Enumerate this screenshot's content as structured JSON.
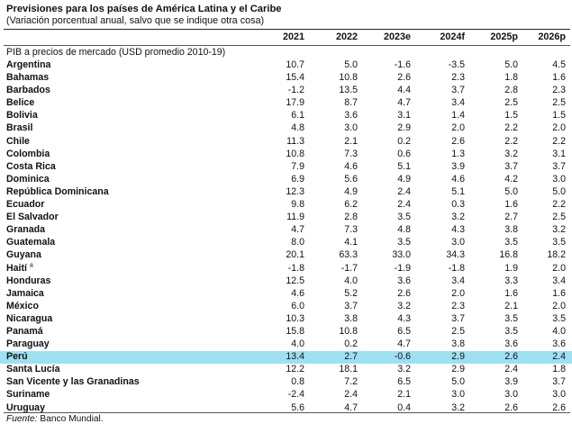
{
  "title": "Previsiones para los países de América Latina y el Caribe",
  "subtitle": "(Variación porcentual anual, salvo que se indique otra cosa)",
  "columns": [
    "2021",
    "2022",
    "2023e",
    "2024f",
    "2025p",
    "2026p"
  ],
  "section_label": "PIB a precios de mercado (USD promedio 2010-19)",
  "rows": [
    {
      "country": "Argentina",
      "values": [
        "10.7",
        "5.0",
        "-1.6",
        "-3.5",
        "5.0",
        "4.5"
      ]
    },
    {
      "country": "Bahamas",
      "values": [
        "15.4",
        "10.8",
        "2.6",
        "2.3",
        "1.8",
        "1.6"
      ]
    },
    {
      "country": "Barbados",
      "values": [
        "-1.2",
        "13.5",
        "4.4",
        "3.7",
        "2.8",
        "2.3"
      ]
    },
    {
      "country": "Belice",
      "values": [
        "17.9",
        "8.7",
        "4.7",
        "3.4",
        "2.5",
        "2.5"
      ]
    },
    {
      "country": "Bolivia",
      "values": [
        "6.1",
        "3.6",
        "3.1",
        "1.4",
        "1.5",
        "1.5"
      ]
    },
    {
      "country": "Brasil",
      "values": [
        "4.8",
        "3.0",
        "2.9",
        "2.0",
        "2.2",
        "2.0"
      ]
    },
    {
      "country": "Chile",
      "values": [
        "11.3",
        "2.1",
        "0.2",
        "2.6",
        "2.2",
        "2.2"
      ]
    },
    {
      "country": "Colombia",
      "values": [
        "10.8",
        "7.3",
        "0.6",
        "1.3",
        "3.2",
        "3.1"
      ]
    },
    {
      "country": "Costa Rica",
      "values": [
        "7.9",
        "4.6",
        "5.1",
        "3.9",
        "3.7",
        "3.7"
      ]
    },
    {
      "country": "Dominica",
      "values": [
        "6.9",
        "5.6",
        "4.9",
        "4.6",
        "4.2",
        "3.0"
      ]
    },
    {
      "country": "República Dominicana",
      "values": [
        "12.3",
        "4.9",
        "2.4",
        "5.1",
        "5.0",
        "5.0"
      ]
    },
    {
      "country": "Ecuador",
      "values": [
        "9.8",
        "6.2",
        "2.4",
        "0.3",
        "1.6",
        "2.2"
      ]
    },
    {
      "country": "El Salvador",
      "values": [
        "11.9",
        "2.8",
        "3.5",
        "3.2",
        "2.7",
        "2.5"
      ]
    },
    {
      "country": "Granada",
      "values": [
        "4.7",
        "7.3",
        "4.8",
        "4.3",
        "3.8",
        "3.2"
      ]
    },
    {
      "country": "Guatemala",
      "values": [
        "8.0",
        "4.1",
        "3.5",
        "3.0",
        "3.5",
        "3.5"
      ]
    },
    {
      "country": "Guyana",
      "values": [
        "20.1",
        "63.3",
        "33.0",
        "34.3",
        "16.8",
        "18.2"
      ]
    },
    {
      "country": "Haití",
      "note": "a",
      "values": [
        "-1.8",
        "-1.7",
        "-1.9",
        "-1.8",
        "1.9",
        "2.0"
      ]
    },
    {
      "country": "Honduras",
      "values": [
        "12.5",
        "4.0",
        "3.6",
        "3.4",
        "3.3",
        "3.4"
      ]
    },
    {
      "country": "Jamaica",
      "values": [
        "4.6",
        "5.2",
        "2.6",
        "2.0",
        "1.6",
        "1.6"
      ]
    },
    {
      "country": "México",
      "values": [
        "6.0",
        "3.7",
        "3.2",
        "2.3",
        "2.1",
        "2.0"
      ]
    },
    {
      "country": "Nicaragua",
      "values": [
        "10.3",
        "3.8",
        "4.3",
        "3.7",
        "3.5",
        "3.5"
      ]
    },
    {
      "country": "Panamá",
      "values": [
        "15.8",
        "10.8",
        "6.5",
        "2.5",
        "3.5",
        "4.0"
      ]
    },
    {
      "country": "Paraguay",
      "values": [
        "4.0",
        "0.2",
        "4.7",
        "3.8",
        "3.6",
        "3.6"
      ]
    },
    {
      "country": "Perú",
      "values": [
        "13.4",
        "2.7",
        "-0.6",
        "2.9",
        "2.6",
        "2.4"
      ],
      "highlight": true
    },
    {
      "country": "Santa Lucía",
      "values": [
        "12.2",
        "18.1",
        "3.2",
        "2.9",
        "2.4",
        "1.8"
      ]
    },
    {
      "country": "San Vicente y las Granadinas",
      "values": [
        "0.8",
        "7.2",
        "6.5",
        "5.0",
        "3.9",
        "3.7"
      ]
    },
    {
      "country": "Suriname",
      "values": [
        "-2.4",
        "2.4",
        "2.1",
        "3.0",
        "3.0",
        "3.0"
      ]
    },
    {
      "country": "Uruguay",
      "values": [
        "5.6",
        "4.7",
        "0.4",
        "3.2",
        "2.6",
        "2.6"
      ]
    }
  ],
  "source_label": "Fuente:",
  "source_text": " Banco Mundial.",
  "colors": {
    "highlight": "#9ee0f2"
  }
}
